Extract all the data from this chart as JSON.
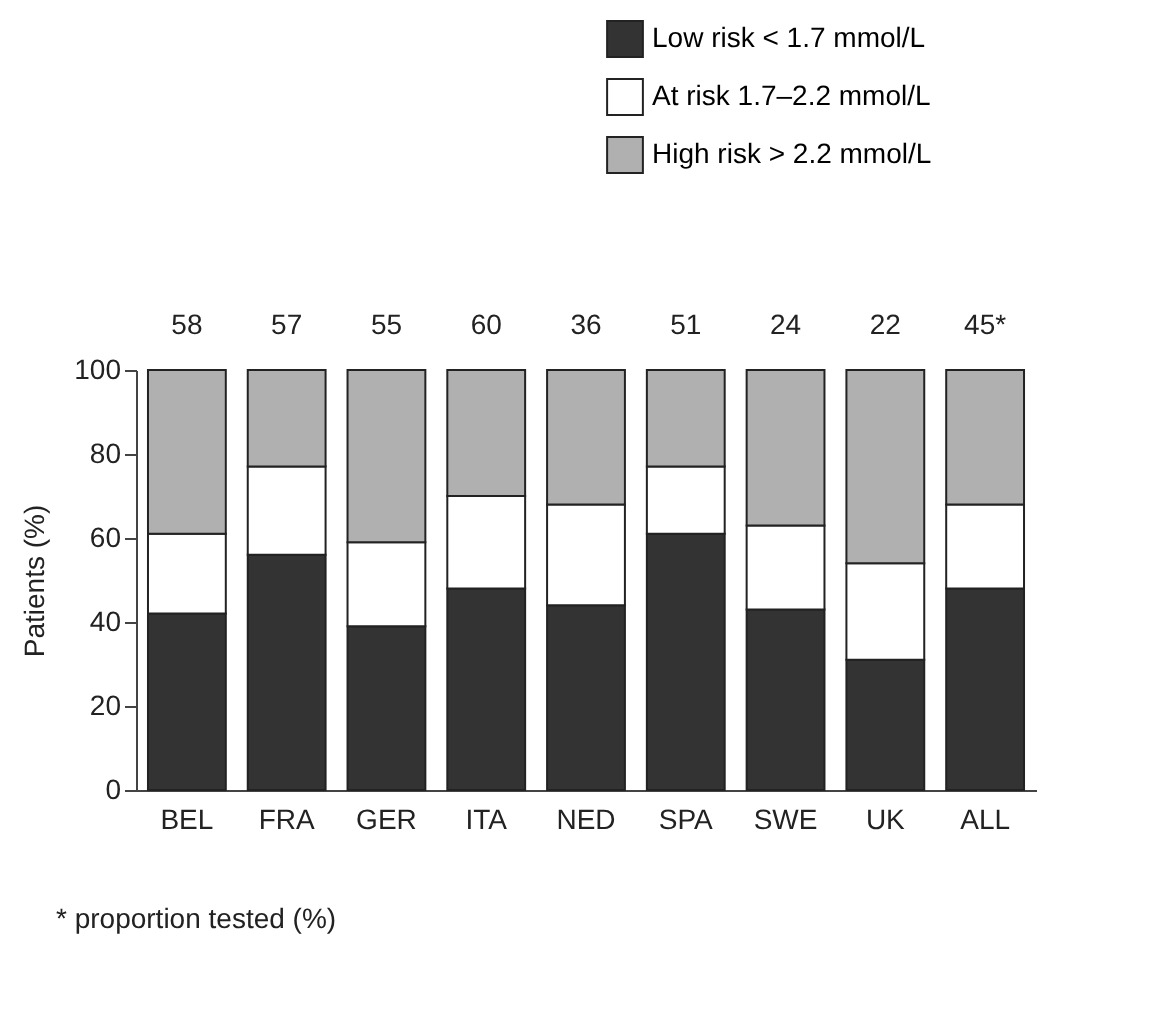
{
  "chart_data": {
    "type": "bar",
    "stacked": true,
    "ylabel": "Patients (%)",
    "categories": [
      "BEL",
      "FRA",
      "GER",
      "ITA",
      "NED",
      "SPA",
      "SWE",
      "UK",
      "ALL"
    ],
    "series": [
      {
        "name": "Low risk < 1.7 mmol/L",
        "color": "#333333",
        "values": [
          42,
          56,
          39,
          48,
          44,
          61,
          43,
          31,
          48
        ]
      },
      {
        "name": "At risk 1.7–2.2 mmol/L",
        "color": "#ffffff",
        "values": [
          19,
          21,
          20,
          22,
          24,
          16,
          20,
          23,
          20
        ]
      },
      {
        "name": "High risk > 2.2 mmol/L",
        "color": "#b0b0b0",
        "values": [
          39,
          23,
          41,
          30,
          32,
          23,
          37,
          46,
          32
        ]
      }
    ],
    "ylim": [
      0,
      100
    ],
    "yticks": [
      0,
      20,
      40,
      60,
      80,
      100
    ],
    "grid": false,
    "legend": "top right",
    "annotations": [
      {
        "text": "58",
        "x": "BEL",
        "y": 100
      },
      {
        "text": "57",
        "x": "FRA",
        "y": 100
      },
      {
        "text": "55",
        "x": "GER",
        "y": 100
      },
      {
        "text": "60",
        "x": "ITA",
        "y": 100
      },
      {
        "text": "36",
        "x": "NED",
        "y": 100
      },
      {
        "text": "51",
        "x": "SPA",
        "y": 100
      },
      {
        "text": "24",
        "x": "SWE",
        "y": 100
      },
      {
        "text": "22",
        "x": "UK",
        "y": 100
      },
      {
        "text": "45*",
        "x": "ALL",
        "y": 100
      },
      "* proportion tested (%)"
    ]
  }
}
